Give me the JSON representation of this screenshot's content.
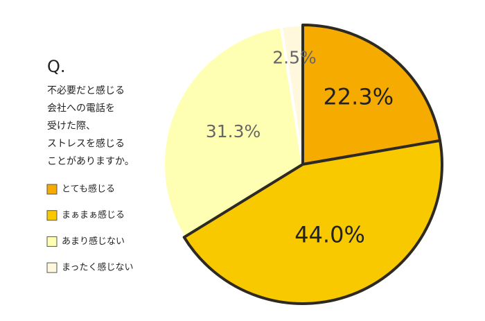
{
  "chart_data": {
    "type": "pie",
    "title": "Q.",
    "subtitle": [
      "不必要だと感じる",
      "会社への電話を",
      "受けた際、",
      "ストレスを感じる",
      "ことがありますか。"
    ],
    "categories": [
      "とても感じる",
      "まぁまぁ感じる",
      "あまり感じない",
      "まったく感じない"
    ],
    "values": [
      22.3,
      44.0,
      31.3,
      2.5
    ],
    "value_labels": [
      "22.3%",
      "44.0%",
      "31.3%",
      "2.5%"
    ],
    "colors": [
      "#f5ab00",
      "#f9c900",
      "#ffffb4",
      "#fff8dc"
    ],
    "edgecolors": [
      "#2e2a22",
      "#2e2a22",
      "#ffffff",
      "#ffffff"
    ],
    "legend": "left"
  }
}
